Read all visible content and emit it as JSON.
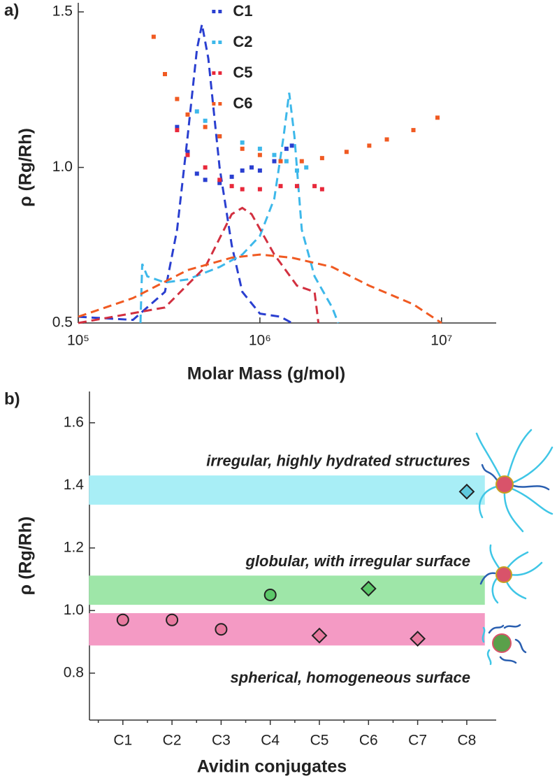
{
  "chart_data": [
    {
      "type": "scatter",
      "panel": "a)",
      "xlabel": "Molar Mass (g/mol)",
      "ylabel": "ρ (Rg/Rh)",
      "xscale": "log",
      "xlim": [
        100000,
        20000000
      ],
      "xticks": [
        {
          "value": 100000,
          "label": "10⁵"
        },
        {
          "value": 1000000,
          "label": "10⁶"
        },
        {
          "value": 10000000,
          "label": "10⁷"
        }
      ],
      "ylim": [
        0.5,
        1.5
      ],
      "yticks": [
        0.5,
        {
          "value": 1,
          "label": "1.0"
        },
        1.5
      ],
      "legend": "upper center",
      "series": [
        {
          "name": "C1",
          "color": "#2a3fd0",
          "x": [
            350000,
            400000,
            450000,
            500000,
            600000,
            700000,
            800000,
            900000,
            1000000,
            1200000,
            1400000,
            1500000
          ],
          "values": [
            1.13,
            1.05,
            0.98,
            0.96,
            0.95,
            0.97,
            0.99,
            1.0,
            0.99,
            1.02,
            1.06,
            1.07
          ]
        },
        {
          "name": "C2",
          "color": "#3db8ea",
          "x": [
            450000,
            500000,
            600000,
            800000,
            1000000,
            1200000,
            1400000,
            1600000,
            1800000
          ],
          "values": [
            1.18,
            1.15,
            1.1,
            1.08,
            1.06,
            1.04,
            1.02,
            0.99,
            1.0
          ]
        },
        {
          "name": "C5",
          "color": "#e8283a",
          "x": [
            350000,
            400000,
            500000,
            600000,
            700000,
            800000,
            1000000,
            1300000,
            1600000,
            2000000,
            2200000
          ],
          "values": [
            1.12,
            1.04,
            1.0,
            0.96,
            0.94,
            0.93,
            0.93,
            0.94,
            0.94,
            0.94,
            0.93
          ]
        },
        {
          "name": "C6",
          "color": "#f05a22",
          "x": [
            260000,
            300000,
            350000,
            400000,
            500000,
            600000,
            800000,
            1000000,
            1300000,
            1700000,
            2200000,
            3000000,
            4000000,
            5000000,
            7000000,
            9500000
          ],
          "values": [
            1.42,
            1.3,
            1.22,
            1.17,
            1.13,
            1.1,
            1.06,
            1.04,
            1.02,
            1.02,
            1.03,
            1.05,
            1.07,
            1.09,
            1.12,
            1.16
          ]
        }
      ],
      "curves": [
        {
          "color": "#2a3fd0",
          "x": [
            100000,
            200000,
            300000,
            350000,
            400000,
            450000,
            480000,
            520000,
            600000,
            700000,
            800000,
            1000000,
            1300000,
            1500000
          ],
          "values": [
            0.52,
            0.51,
            0.6,
            0.8,
            1.1,
            1.38,
            1.46,
            1.35,
            1.0,
            0.75,
            0.6,
            0.53,
            0.52,
            0.5
          ]
        },
        {
          "color": "#3db8ea",
          "x": [
            220000,
            225000,
            240000,
            300000,
            400000,
            600000,
            800000,
            1000000,
            1200000,
            1350000,
            1450000,
            1550000,
            1700000,
            2000000,
            2500000,
            2700000
          ],
          "values": [
            0.5,
            0.69,
            0.65,
            0.63,
            0.64,
            0.68,
            0.72,
            0.78,
            0.9,
            1.1,
            1.24,
            1.1,
            0.8,
            0.65,
            0.55,
            0.5
          ]
        },
        {
          "color": "#d23040",
          "x": [
            100000,
            300000,
            500000,
            700000,
            800000,
            900000,
            1200000,
            1600000,
            2000000,
            2100000
          ],
          "values": [
            0.5,
            0.55,
            0.68,
            0.85,
            0.87,
            0.85,
            0.72,
            0.62,
            0.6,
            0.5
          ]
        },
        {
          "color": "#f05a22",
          "x": [
            100000,
            200000,
            400000,
            700000,
            1000000,
            1500000,
            2500000,
            4000000,
            7000000,
            10000000
          ],
          "values": [
            0.52,
            0.58,
            0.67,
            0.71,
            0.72,
            0.71,
            0.68,
            0.62,
            0.56,
            0.5
          ]
        }
      ]
    },
    {
      "type": "scatter",
      "panel": "b)",
      "xlabel": "Avidin conjugates",
      "ylabel": "ρ (Rg/Rh)",
      "categories": [
        "C1",
        "C2",
        "C3",
        "C4",
        "C5",
        "C6",
        "C7",
        "C8"
      ],
      "values": [
        0.97,
        0.97,
        0.94,
        1.05,
        0.92,
        1.07,
        0.91,
        1.38
      ],
      "markers": [
        "circle",
        "circle",
        "circle",
        "circle",
        "diamond",
        "diamond",
        "diamond",
        "diamond"
      ],
      "colors": [
        "#e8799f",
        "#e8799f",
        "#e8799f",
        "#5cc86a",
        "#e8799f",
        "#5cc86a",
        "#e8799f",
        "#5ec9dd"
      ],
      "ylim": [
        0.65,
        1.7
      ],
      "yticks": [
        0.8,
        {
          "value": 1,
          "label": "1.0"
        },
        1.2,
        1.4,
        1.6
      ],
      "bands": [
        {
          "range": [
            1.34,
            1.43
          ],
          "color": "#a8eef6",
          "label": "irregular, highly hydrated structures",
          "label_color": "#2b2bd6",
          "label_side": "above"
        },
        {
          "range": [
            1.02,
            1.11
          ],
          "color": "#9ee6a8",
          "label": "globular, with irregular surface",
          "label_color": "#3cbf28",
          "label_side": "above"
        },
        {
          "range": [
            0.89,
            0.99
          ],
          "color": "#f49ac4",
          "label": "spherical, homogeneous surface",
          "label_color": "#ee4488",
          "label_side": "below"
        }
      ]
    }
  ]
}
